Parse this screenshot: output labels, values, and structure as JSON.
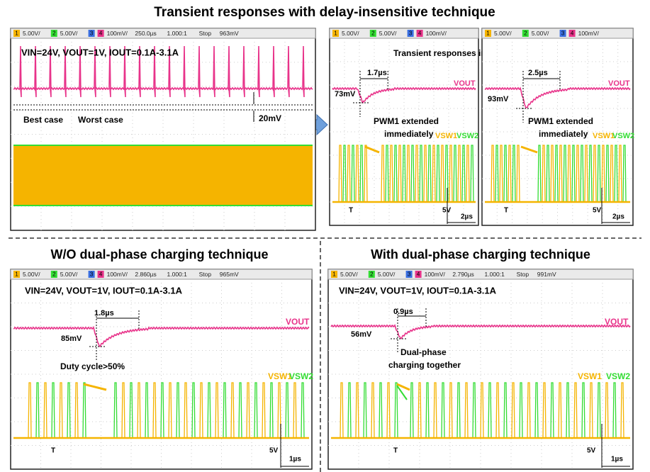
{
  "title": "Transient responses with delay-insensitive technique",
  "subtitles": [
    "W/O dual-phase charging technique",
    "With dual-phase charging technique"
  ],
  "panels": [
    {
      "status": [
        "1",
        "5.00V/",
        "2",
        "5.00V/",
        "3",
        "4",
        "100mV/",
        "250.0µs",
        "1.000:1",
        "Stop",
        "963mV"
      ],
      "annotations": [
        "VIN=24V, VOUT=1V, IOUT=0.1A-3.1A",
        "Best case",
        "Worst case",
        "20mV"
      ]
    },
    {
      "status": [
        "1",
        "5.00V/",
        "2",
        "5.00V/",
        "3",
        "4",
        "100mV/"
      ],
      "annotations": [
        "Transient responses insensitive to delay",
        "1.7µs",
        "73mV",
        "VOUT",
        "PWM1 extended",
        "immediately",
        "VSW1",
        "VSW2",
        "T",
        "5V",
        "2µs"
      ]
    },
    {
      "status": [
        "1",
        "5.00V/",
        "2",
        "5.00V/",
        "3",
        "4",
        "100mV/"
      ],
      "annotations": [
        "2.5µs",
        "93mV",
        "VOUT",
        "PWM1 extended",
        "immediately",
        "VSW1",
        "VSW2",
        "T",
        "5V",
        "2µs"
      ]
    },
    {
      "status": [
        "1",
        "5.00V/",
        "2",
        "5.00V/",
        "3",
        "4",
        "100mV/",
        "2.860µs",
        "1.000:1",
        "Stop",
        "965mV"
      ],
      "annotations": [
        "VIN=24V, VOUT=1V, IOUT=0.1A-3.1A",
        "1.8µs",
        "85mV",
        "VOUT",
        "Duty cycle>50%",
        "VSW1",
        "VSW2",
        "T",
        "5V",
        "1µs"
      ]
    },
    {
      "status": [
        "1",
        "5.00V/",
        "2",
        "5.00V/",
        "3",
        "4",
        "100mV/",
        "2.790µs",
        "1.000:1",
        "Stop",
        "991mV"
      ],
      "annotations": [
        "VIN=24V, VOUT=1V, IOUT=0.1A-3.1A",
        "0.9µs",
        "56mV",
        "VOUT",
        "Dual-phase",
        "charging together",
        "VSW1",
        "VSW2",
        "T",
        "5V",
        "1µs"
      ]
    }
  ]
}
